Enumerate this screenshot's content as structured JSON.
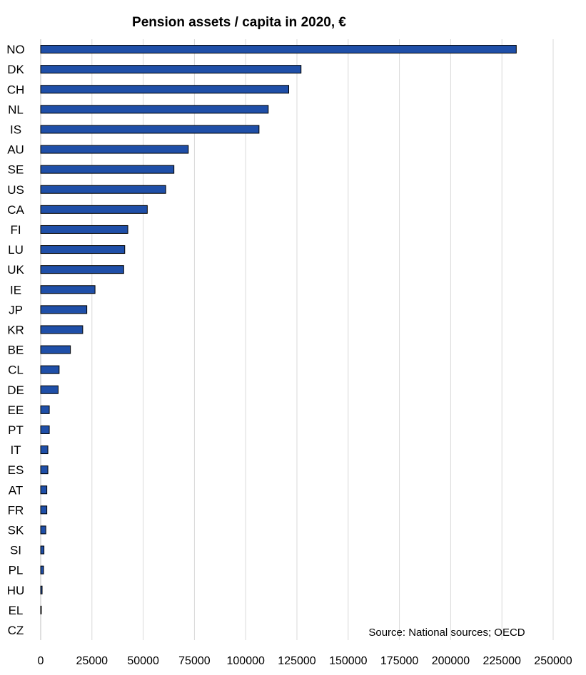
{
  "chart_data": {
    "type": "bar",
    "orientation": "horizontal",
    "title": "Pension assets / capita in 2020, €",
    "source": "Source: National sources; OECD",
    "categories": [
      "NO",
      "DK",
      "CH",
      "NL",
      "IS",
      "AU",
      "SE",
      "US",
      "CA",
      "FI",
      "LU",
      "UK",
      "IE",
      "JP",
      "KR",
      "BE",
      "CL",
      "DE",
      "EE",
      "PT",
      "IT",
      "ES",
      "AT",
      "FR",
      "SK",
      "SI",
      "PL",
      "HU",
      "EL",
      "CZ"
    ],
    "values": [
      232000,
      127000,
      121000,
      111000,
      106500,
      72000,
      65000,
      61000,
      52000,
      42500,
      41000,
      40500,
      26500,
      22500,
      20500,
      14500,
      9000,
      8500,
      4200,
      4200,
      3500,
      3500,
      3000,
      3000,
      2500,
      1600,
      1400,
      700,
      300,
      0
    ],
    "xlim": [
      0,
      250000
    ],
    "xticks": [
      "0",
      "25000",
      "50000",
      "75000",
      "100000",
      "125000",
      "150000",
      "175000",
      "200000",
      "225000",
      "250000"
    ],
    "grid": true,
    "legend": "none",
    "bar_color": "#1f4fa8",
    "bar_edge_color": "#000000",
    "grid_color": "#d9d9d9"
  }
}
